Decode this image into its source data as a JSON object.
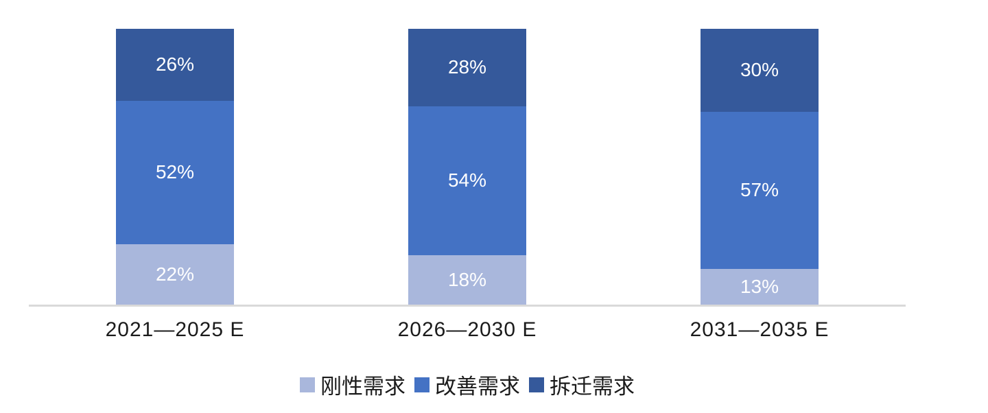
{
  "chart_data": {
    "type": "bar",
    "subtype": "stacked-percentage-column",
    "categories": [
      "2021—2025 E",
      "2026—2030 E",
      "2031—2035 E"
    ],
    "series": [
      {
        "name": "刚性需求",
        "color": "#A9B7DC",
        "values": [
          22,
          18,
          13
        ]
      },
      {
        "name": "改善需求",
        "color": "#4472C4",
        "values": [
          52,
          54,
          57
        ]
      },
      {
        "name": "拆迁需求",
        "color": "#35599B",
        "values": [
          26,
          28,
          30
        ]
      }
    ],
    "value_suffix": "%",
    "title": "",
    "xlabel": "",
    "ylabel": "",
    "ylim": [
      0,
      100
    ],
    "grid": false,
    "legend_position": "bottom",
    "data_label_color": "#FFFFFF",
    "axis_line_color": "#D9D9D9",
    "background_color": "#FFFFFF"
  }
}
